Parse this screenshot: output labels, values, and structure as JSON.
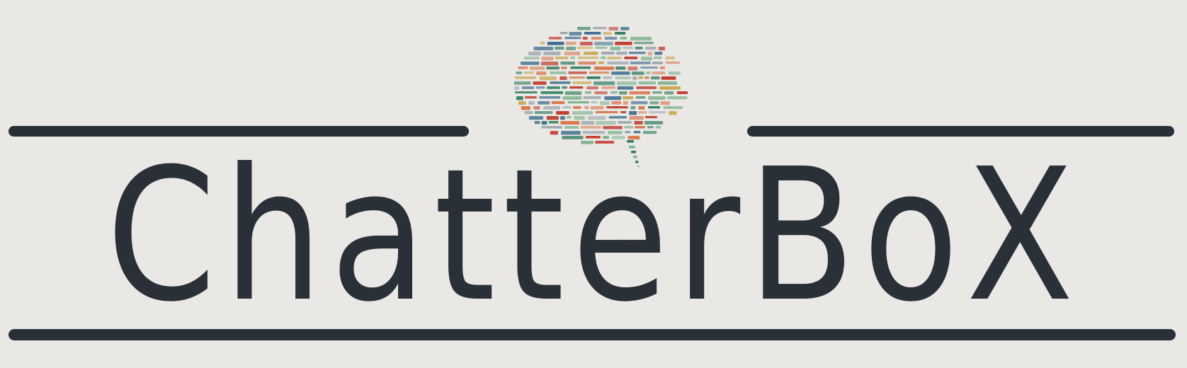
{
  "logo": {
    "wordmark": "ChatterBoX",
    "icon": "word-cloud-speech-bubble-icon",
    "colors": {
      "ink": "#2a3038",
      "background": "#e9e8e5",
      "bubble_palette": [
        "#2e7d5b",
        "#3f6f8f",
        "#c9a54a",
        "#d9774a",
        "#c0392b",
        "#7fb38f",
        "#9aa3aa"
      ]
    }
  }
}
